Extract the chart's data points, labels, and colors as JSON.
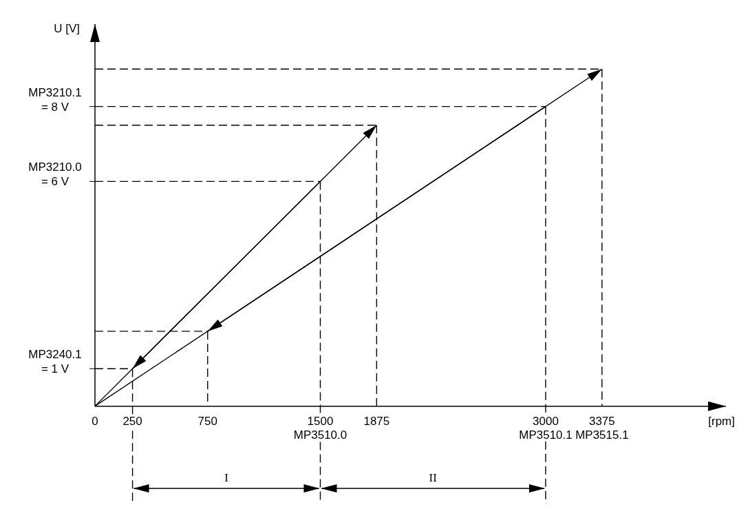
{
  "chart_data": {
    "type": "line",
    "xlabel": "[rpm]",
    "ylabel": "U [V]",
    "xlim": [
      0,
      4200
    ],
    "ylim": [
      -2.6,
      10.2
    ],
    "xticks": [
      0,
      250,
      750,
      {
        "value": 1500,
        "label": "1500\nMP3510.0"
      },
      1875,
      {
        "value": 3000,
        "label": "3000\nMP3510.1"
      },
      {
        "value": 3375,
        "label": "3375\nMP3515.1"
      }
    ],
    "yticks": [
      {
        "value": 1,
        "label": "= 1 V"
      },
      {
        "value": 6,
        "label": "= 6 V"
      },
      {
        "value": 8,
        "label": "= 8 V"
      }
    ],
    "grid": false,
    "series": [
      {
        "color": "#000000",
        "x": [
          0,
          1875
        ],
        "values": [
          0,
          7.5
        ],
        "line_style": "solid"
      },
      {
        "color": "#000000",
        "x": [
          1500,
          250
        ],
        "values": [
          6,
          1
        ],
        "line_style": "solid"
      },
      {
        "color": "#000000",
        "x": [
          0,
          3375
        ],
        "values": [
          0,
          9
        ],
        "line_style": "solid"
      },
      {
        "color": "#000000",
        "x": [
          3000,
          1500,
          750
        ],
        "values": [
          8,
          4,
          2
        ],
        "line_style": "solid"
      },
      {
        "color": "#000000",
        "x": [
          0,
          3375
        ],
        "values": [
          9,
          9
        ],
        "line_style": "dashed"
      },
      {
        "color": "#000000",
        "x": [
          0,
          3000
        ],
        "values": [
          8,
          8
        ],
        "line_style": "dashed"
      },
      {
        "color": "#000000",
        "x": [
          0,
          1875
        ],
        "values": [
          7.5,
          7.5
        ],
        "line_style": "dashed"
      },
      {
        "color": "#000000",
        "x": [
          0,
          1500
        ],
        "values": [
          6,
          6
        ],
        "line_style": "dashed"
      },
      {
        "color": "#000000",
        "x": [
          0,
          750
        ],
        "values": [
          2,
          2
        ],
        "line_style": "dashed"
      },
      {
        "color": "#000000",
        "x": [
          0,
          250
        ],
        "values": [
          1,
          1
        ],
        "line_style": "dashed"
      },
      {
        "color": "#000000",
        "x": [
          3375,
          3375
        ],
        "values": [
          9,
          0
        ],
        "line_style": "dashed"
      },
      {
        "color": "#000000",
        "x": [
          3000,
          3000
        ],
        "values": [
          8,
          -2.6
        ],
        "line_style": "dashed"
      },
      {
        "color": "#000000",
        "x": [
          1875,
          1875
        ],
        "values": [
          7.5,
          0
        ],
        "line_style": "dashed"
      },
      {
        "color": "#000000",
        "x": [
          1500,
          1500
        ],
        "values": [
          6,
          -2.6
        ],
        "line_style": "dashed"
      },
      {
        "color": "#000000",
        "x": [
          750,
          750
        ],
        "values": [
          2,
          0
        ],
        "line_style": "dashed"
      },
      {
        "color": "#000000",
        "x": [
          250,
          250
        ],
        "values": [
          1,
          -2.6
        ],
        "line_style": "dashed"
      }
    ],
    "annotations": [
      "MP3240.1",
      "MP3210.0",
      "MP3210.1",
      "I",
      "II"
    ]
  }
}
